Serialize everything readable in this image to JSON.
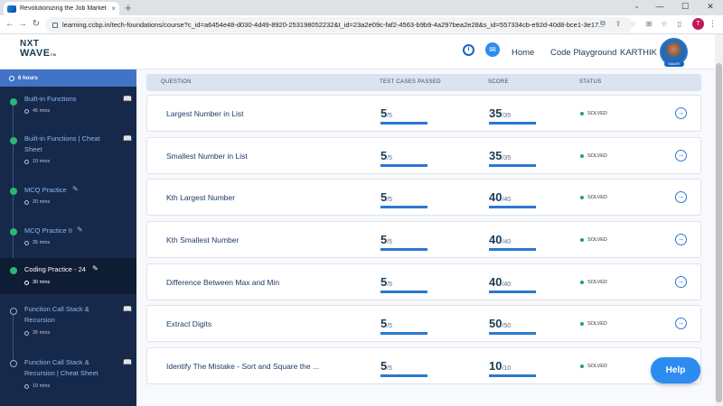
{
  "browser": {
    "tab_title": "Revolutionizing the Job Market |",
    "tab_close": "×",
    "new_tab": "+",
    "url": "learning.ccbp.in/tech-foundations/course?c_id=a6454e48-d030-4d49-8920-253198052232&t_id=23a2e09c-faf2-4563-b9b9-4a297bea2e28&s_id=557334cb-e92d-40d8-bce1-3e17...",
    "profile_initial": "T",
    "window_controls": [
      "—",
      "☐",
      "✕"
    ],
    "nav": {
      "back": "←",
      "forward": "→",
      "reload": "↻"
    }
  },
  "header": {
    "logo_line1": "NXT",
    "logo_line2": "WAVE",
    "logo_tm": "TM",
    "home": "Home",
    "playground": "Code Playground",
    "user": "KARTHIK",
    "avatar_badge": "SMART"
  },
  "sidebar": {
    "top_duration": "6 hours",
    "items": [
      {
        "label": "Built-in Functions",
        "meta": "45 mins",
        "icon": "book-icon"
      },
      {
        "label": "Built-in Functions | Cheat Sheet",
        "meta": "10 mins",
        "icon": "book-icon"
      },
      {
        "label": "MCQ Practice",
        "meta": "20 mins",
        "icon": "pencil-icon"
      },
      {
        "label": "MCQ Practice II",
        "meta": "35 mins",
        "icon": "pencil-icon"
      },
      {
        "label": "Coding Practice - 24",
        "meta": "30 mins",
        "icon": "pencil-icon"
      },
      {
        "label": "Function Call Stack & Recursion",
        "meta": "35 mins",
        "icon": "book-icon"
      },
      {
        "label": "Function Call Stack & Recursion | Cheat Sheet",
        "meta": "10 mins",
        "icon": "book-icon"
      }
    ]
  },
  "table": {
    "headers": {
      "question": "QUESTION",
      "test_cases": "TEST CASES PASSED",
      "score": "SCORE",
      "status": "STATUS"
    },
    "rows": [
      {
        "question": "Largest Number in List",
        "passed": "5",
        "total_cases": "/5",
        "score": "35",
        "max_score": "/35",
        "status": "SOLVED"
      },
      {
        "question": "Smallest Number in List",
        "passed": "5",
        "total_cases": "/5",
        "score": "35",
        "max_score": "/35",
        "status": "SOLVED"
      },
      {
        "question": "Kth Largest Number",
        "passed": "5",
        "total_cases": "/5",
        "score": "40",
        "max_score": "/40",
        "status": "SOLVED"
      },
      {
        "question": "Kth Smallest Number",
        "passed": "5",
        "total_cases": "/5",
        "score": "40",
        "max_score": "/40",
        "status": "SOLVED"
      },
      {
        "question": "Difference Between Max and Min",
        "passed": "5",
        "total_cases": "/5",
        "score": "40",
        "max_score": "/40",
        "status": "SOLVED"
      },
      {
        "question": "Extract Digits",
        "passed": "5",
        "total_cases": "/5",
        "score": "50",
        "max_score": "/50",
        "status": "SOLVED"
      },
      {
        "question": "Identify The Mistake - Sort and Square the ...",
        "passed": "5",
        "total_cases": "/5",
        "score": "10",
        "max_score": "/10",
        "status": "SOLVED"
      }
    ]
  },
  "help": "Help",
  "colors": {
    "accent": "#2b78d1",
    "sidebar_bg": "#16294a",
    "solved_green": "#22a35b"
  }
}
